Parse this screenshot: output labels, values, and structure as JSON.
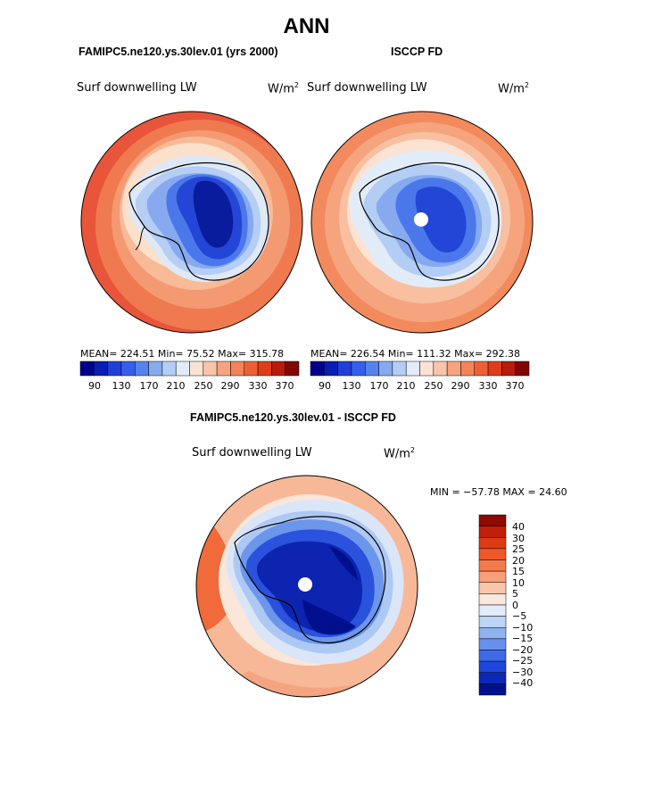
{
  "title": "ANN",
  "panels": [
    {
      "heading": "FAMIPC5.ne120.ys.30lev.01 (yrs 2000)",
      "variable": "Surf downwelling LW",
      "units": "W/m",
      "units_sup": "2",
      "stats": "MEAN= 224.51   Min=  75.52   Max= 315.78",
      "colorbar": {
        "colors": [
          "#00008c",
          "#0a1eb4",
          "#1f3fd8",
          "#3260ec",
          "#5583ec",
          "#86a9f0",
          "#b4cdf4",
          "#e2ecf8",
          "#fbe2d4",
          "#f9c4a8",
          "#f6a47e",
          "#f38458",
          "#ee6034",
          "#e03c1a",
          "#b81c0c",
          "#820602"
        ],
        "tick_labels": [
          "90",
          "130",
          "170",
          "210",
          "250",
          "290",
          "330",
          "370"
        ]
      }
    },
    {
      "heading": "ISCCP FD",
      "variable": "Surf downwelling LW",
      "units": "W/m",
      "units_sup": "2",
      "stats": "MEAN= 226.54   Min= 111.32   Max= 292.38",
      "colorbar": {
        "colors": [
          "#00008c",
          "#0a1eb4",
          "#1f3fd8",
          "#3260ec",
          "#5583ec",
          "#86a9f0",
          "#b4cdf4",
          "#e2ecf8",
          "#fbe2d4",
          "#f9c4a8",
          "#f6a47e",
          "#f38458",
          "#ee6034",
          "#e03c1a",
          "#b81c0c",
          "#820602"
        ],
        "tick_labels": [
          "90",
          "130",
          "170",
          "210",
          "250",
          "290",
          "330",
          "370"
        ]
      }
    }
  ],
  "diff": {
    "heading": "FAMIPC5.ne120.ys.30lev.01 - ISCCP FD",
    "variable": "Surf downwelling LW",
    "units": "W/m",
    "units_sup": "2",
    "stats": "MIN = −57.78 MAX =  24.60",
    "colorbar": {
      "colors": [
        "#8c0a00",
        "#c0200a",
        "#e03c14",
        "#f0582a",
        "#f47a4c",
        "#f7a07a",
        "#f9c6aa",
        "#fbe8dc",
        "#e2ecfa",
        "#bcd4f8",
        "#90b2f2",
        "#6690ec",
        "#3c6ae8",
        "#1e46dc",
        "#0c28b8",
        "#00108c"
      ],
      "tick_labels": [
        "40",
        "30",
        "25",
        "20",
        "15",
        "10",
        "5",
        "0",
        "−5",
        "−10",
        "−15",
        "−20",
        "−25",
        "−30",
        "−40"
      ]
    }
  }
}
